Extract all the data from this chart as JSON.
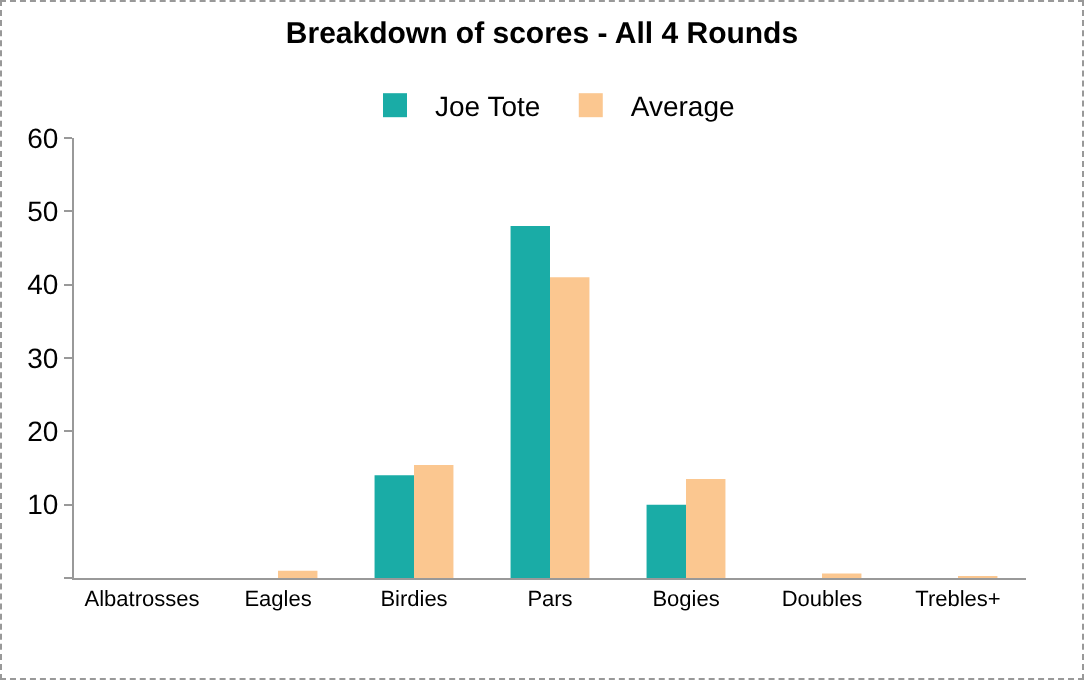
{
  "chart_data": {
    "type": "bar",
    "title": "Breakdown of scores - All 4 Rounds",
    "categories": [
      "Albatrosses",
      "Eagles",
      "Birdies",
      "Pars",
      "Bogies",
      "Doubles",
      "Trebles+"
    ],
    "series": [
      {
        "name": "Joe Tote",
        "color": "#1aaca6",
        "values": [
          0,
          0,
          14,
          48,
          10,
          0,
          0
        ]
      },
      {
        "name": "Average",
        "color": "#fbc790",
        "values": [
          0,
          1,
          15.4,
          41,
          13.5,
          0.6,
          0.2
        ]
      }
    ],
    "ylim": [
      0,
      60
    ],
    "yticks": [
      {
        "value": 0,
        "label": null
      },
      10,
      20,
      30,
      40,
      50,
      60
    ],
    "grid": false,
    "legend": "top"
  }
}
